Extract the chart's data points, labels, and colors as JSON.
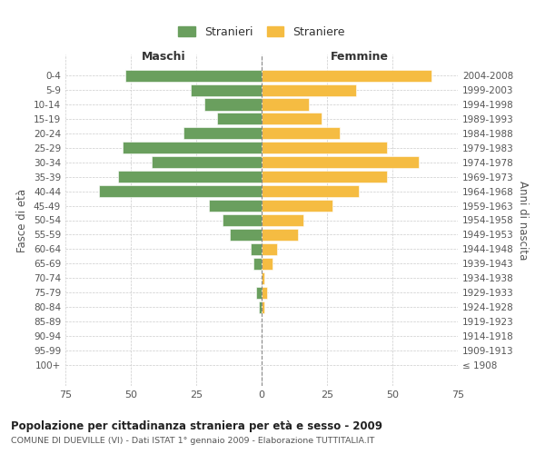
{
  "age_groups": [
    "0-4",
    "5-9",
    "10-14",
    "15-19",
    "20-24",
    "25-29",
    "30-34",
    "35-39",
    "40-44",
    "45-49",
    "50-54",
    "55-59",
    "60-64",
    "65-69",
    "70-74",
    "75-79",
    "80-84",
    "85-89",
    "90-94",
    "95-99",
    "100+"
  ],
  "birth_years": [
    "2004-2008",
    "1999-2003",
    "1994-1998",
    "1989-1993",
    "1984-1988",
    "1979-1983",
    "1974-1978",
    "1969-1973",
    "1964-1968",
    "1959-1963",
    "1954-1958",
    "1949-1953",
    "1944-1948",
    "1939-1943",
    "1934-1938",
    "1929-1933",
    "1924-1928",
    "1919-1923",
    "1914-1918",
    "1909-1913",
    "≤ 1908"
  ],
  "maschi": [
    52,
    27,
    22,
    17,
    30,
    53,
    42,
    55,
    62,
    20,
    15,
    12,
    4,
    3,
    0,
    2,
    1,
    0,
    0,
    0,
    0
  ],
  "femmine": [
    65,
    36,
    18,
    23,
    30,
    48,
    60,
    48,
    37,
    27,
    16,
    14,
    6,
    4,
    1,
    2,
    1,
    0,
    0,
    0,
    0
  ],
  "maschi_color": "#6a9f5e",
  "femmine_color": "#f5bc42",
  "background_color": "#ffffff",
  "grid_color": "#cccccc",
  "title": "Popolazione per cittadinanza straniera per età e sesso - 2009",
  "subtitle": "COMUNE DI DUEVILLE (VI) - Dati ISTAT 1° gennaio 2009 - Elaborazione TUTTITALIA.IT",
  "xlabel_left": "Maschi",
  "xlabel_right": "Femmine",
  "ylabel_left": "Fasce di età",
  "ylabel_right": "Anni di nascita",
  "xlim": 75,
  "legend_stranieri": "Stranieri",
  "legend_straniere": "Straniere"
}
